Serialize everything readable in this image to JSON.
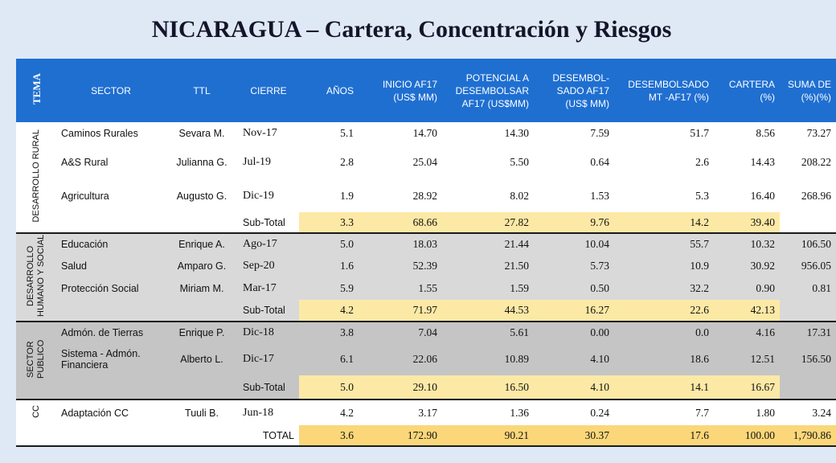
{
  "title": "NICARAGUA – Cartera, Concentración y Riesgos",
  "headers": {
    "tema": "TEMA",
    "sector": "SECTOR",
    "ttl": "TTL",
    "cierre": "CIERRE",
    "anos": "AÑOS",
    "inicio": "INICIO AF17 (US$ MM)",
    "potencial": "POTENCIAL A DESEMBOLSAR AF17 (US$MM)",
    "desembolsado": "DESEMBOL-SADO AF17 (US$ MM)",
    "desembolsado_pct": "DESEMBOLSADO MT -AF17 (%)",
    "cartera": "CARTERA (%)",
    "suma": "SUMA DE (%)(%)"
  },
  "groups": [
    {
      "tema": "DESARROLLO RURAL",
      "rows": [
        {
          "sector": "Caminos Rurales",
          "ttl": "Sevara M.",
          "cierre": "Nov-17",
          "anos": "5.1",
          "inicio": "14.70",
          "potencial": "14.30",
          "desembolsado": "7.59",
          "pct": "51.7",
          "cartera": "8.56",
          "suma": "73.27"
        },
        {
          "sector": "A&S Rural",
          "ttl": "Julianna G.",
          "cierre": "Jul-19",
          "anos": "2.8",
          "inicio": "25.04",
          "potencial": "5.50",
          "desembolsado": "0.64",
          "pct": "2.6",
          "cartera": "14.43",
          "suma": "208.22"
        },
        {
          "sector": "Agricultura",
          "ttl": "Augusto G.",
          "cierre": "Dic-19",
          "anos": "1.9",
          "inicio": "28.92",
          "potencial": "8.02",
          "desembolsado": "1.53",
          "pct": "5.3",
          "cartera": "16.40",
          "suma": "268.96"
        }
      ],
      "subtotal": {
        "label": "Sub-Total",
        "anos": "3.3",
        "inicio": "68.66",
        "potencial": "27.82",
        "desembolsado": "9.76",
        "pct": "14.2",
        "cartera": "39.40"
      }
    },
    {
      "tema": "DESARROLLO HUMANO Y SOCIAL",
      "rows": [
        {
          "sector": "Educación",
          "ttl": "Enrique A.",
          "cierre": "Ago-17",
          "anos": "5.0",
          "inicio": "18.03",
          "potencial": "21.44",
          "desembolsado": "10.04",
          "pct": "55.7",
          "cartera": "10.32",
          "suma": "106.50"
        },
        {
          "sector": "Salud",
          "ttl": "Amparo G.",
          "cierre": "Sep-20",
          "anos": "1.6",
          "inicio": "52.39",
          "potencial": "21.50",
          "desembolsado": "5.73",
          "pct": "10.9",
          "cartera": "30.92",
          "suma": "956.05"
        },
        {
          "sector": "Protección Social",
          "ttl": "Miriam M.",
          "cierre": "Mar-17",
          "anos": "5.9",
          "inicio": "1.55",
          "potencial": "1.59",
          "desembolsado": "0.50",
          "pct": "32.2",
          "cartera": "0.90",
          "suma": "0.81"
        }
      ],
      "subtotal": {
        "label": "Sub-Total",
        "anos": "4.2",
        "inicio": "71.97",
        "potencial": "44.53",
        "desembolsado": "16.27",
        "pct": "22.6",
        "cartera": "42.13"
      }
    },
    {
      "tema": "SECTOR PUBLICO",
      "rows": [
        {
          "sector": "Admón. de Tierras",
          "ttl": "Enrique P.",
          "cierre": "Dic-18",
          "anos": "3.8",
          "inicio": "7.04",
          "potencial": "5.61",
          "desembolsado": "0.00",
          "pct": "0.0",
          "cartera": "4.16",
          "suma": "17.31"
        },
        {
          "sector": "Sistema - Admón. Financiera",
          "ttl": "Alberto L.",
          "cierre": "Dic-17",
          "anos": "6.1",
          "inicio": "22.06",
          "potencial": "10.89",
          "desembolsado": "4.10",
          "pct": "18.6",
          "cartera": "12.51",
          "suma": "156.50"
        }
      ],
      "subtotal": {
        "label": "Sub-Total",
        "anos": "5.0",
        "inicio": "29.10",
        "potencial": "16.50",
        "desembolsado": "4.10",
        "pct": "14.1",
        "cartera": "16.67"
      }
    },
    {
      "tema": "CC",
      "rows": [
        {
          "sector": "Adaptación CC",
          "ttl": "Tuuli B.",
          "cierre": "Jun-18",
          "anos": "4.2",
          "inicio": "3.17",
          "potencial": "1.36",
          "desembolsado": "0.24",
          "pct": "7.7",
          "cartera": "1.80",
          "suma": "3.24"
        }
      ]
    }
  ],
  "total": {
    "label": "TOTAL",
    "anos": "3.6",
    "inicio": "172.90",
    "potencial": "90.21",
    "desembolsado": "30.37",
    "pct": "17.6",
    "cartera": "100.00",
    "suma": "1,790.86"
  },
  "colors": {
    "header": "#1f6fd1",
    "background": "#dfe9f5",
    "subtotal": "#fde9a6",
    "total": "#fbd77a"
  }
}
